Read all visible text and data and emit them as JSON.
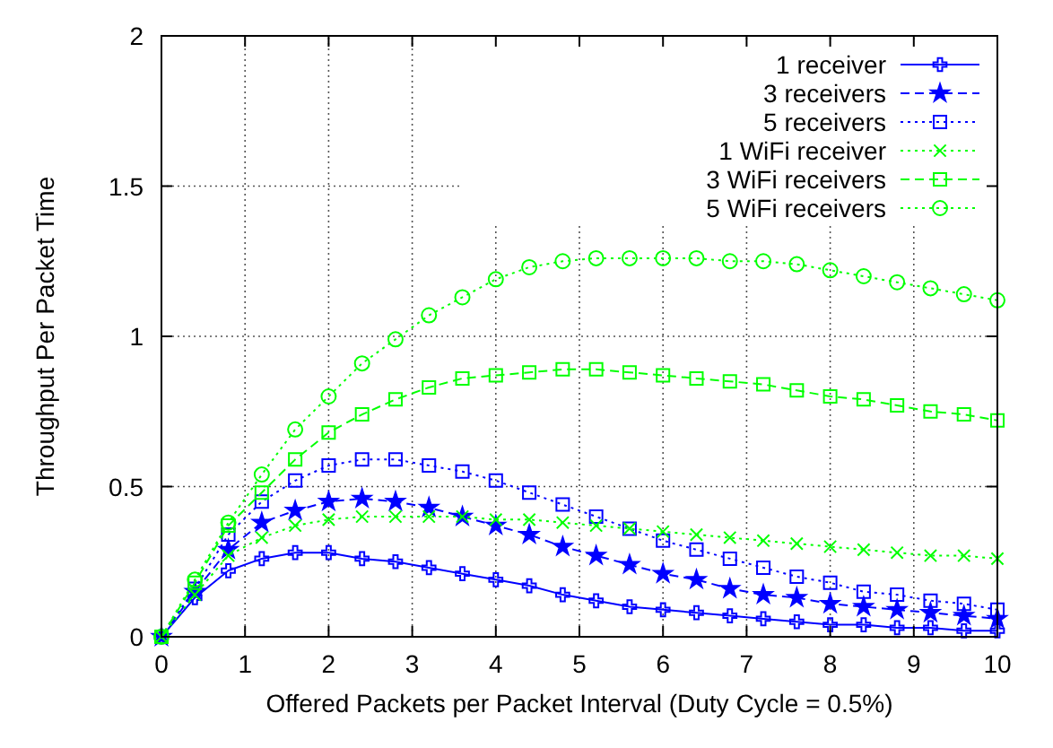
{
  "chart_data": {
    "type": "line",
    "xlabel": "Offered Packets per Packet Interval (Duty Cycle = 0.5%)",
    "ylabel": "Throughput Per Packet Time",
    "x": [
      0,
      0.4,
      0.8,
      1.2,
      1.6,
      2.0,
      2.4,
      2.8,
      3.2,
      3.6,
      4.0,
      4.4,
      4.8,
      5.2,
      5.6,
      6.0,
      6.4,
      6.8,
      7.2,
      7.6,
      8.0,
      8.4,
      8.8,
      9.2,
      9.6,
      10
    ],
    "series": [
      {
        "name": "1 receiver",
        "color": "#0000ff",
        "marker": "plus",
        "line_style": "solid",
        "values": [
          0,
          0.13,
          0.22,
          0.26,
          0.28,
          0.28,
          0.26,
          0.25,
          0.23,
          0.21,
          0.19,
          0.17,
          0.14,
          0.12,
          0.1,
          0.09,
          0.08,
          0.07,
          0.06,
          0.05,
          0.04,
          0.04,
          0.03,
          0.03,
          0.02,
          0.02
        ]
      },
      {
        "name": "3 receivers",
        "color": "#0000ff",
        "marker": "star",
        "line_style": "dashed",
        "values": [
          0,
          0.15,
          0.29,
          0.38,
          0.42,
          0.45,
          0.46,
          0.45,
          0.43,
          0.4,
          0.37,
          0.34,
          0.3,
          0.27,
          0.24,
          0.21,
          0.19,
          0.16,
          0.14,
          0.13,
          0.11,
          0.1,
          0.09,
          0.08,
          0.07,
          0.06
        ]
      },
      {
        "name": "5 receivers",
        "color": "#0000ff",
        "marker": "square",
        "line_style": "dotted",
        "values": [
          0,
          0.16,
          0.34,
          0.45,
          0.52,
          0.57,
          0.59,
          0.59,
          0.57,
          0.55,
          0.52,
          0.48,
          0.44,
          0.4,
          0.36,
          0.32,
          0.29,
          0.26,
          0.23,
          0.2,
          0.18,
          0.15,
          0.14,
          0.12,
          0.11,
          0.09
        ]
      },
      {
        "name": "1 WiFi receiver",
        "color": "#00ff00",
        "marker": "cross",
        "line_style": "dotted",
        "values": [
          0,
          0.14,
          0.27,
          0.33,
          0.37,
          0.39,
          0.4,
          0.4,
          0.4,
          0.4,
          0.39,
          0.39,
          0.38,
          0.37,
          0.36,
          0.35,
          0.34,
          0.33,
          0.32,
          0.31,
          0.3,
          0.29,
          0.28,
          0.27,
          0.27,
          0.26
        ]
      },
      {
        "name": "3 WiFi receivers",
        "color": "#00ff00",
        "marker": "square",
        "line_style": "dashed",
        "values": [
          0,
          0.18,
          0.37,
          0.48,
          0.59,
          0.68,
          0.74,
          0.79,
          0.83,
          0.86,
          0.87,
          0.88,
          0.89,
          0.89,
          0.88,
          0.87,
          0.86,
          0.85,
          0.84,
          0.82,
          0.8,
          0.79,
          0.77,
          0.75,
          0.74,
          0.72
        ]
      },
      {
        "name": "5 WiFi receivers",
        "color": "#00ff00",
        "marker": "circle",
        "line_style": "dotted",
        "values": [
          0,
          0.19,
          0.38,
          0.54,
          0.69,
          0.8,
          0.91,
          0.99,
          1.07,
          1.13,
          1.19,
          1.23,
          1.25,
          1.26,
          1.26,
          1.26,
          1.26,
          1.25,
          1.25,
          1.24,
          1.22,
          1.2,
          1.18,
          1.16,
          1.14,
          1.12
        ]
      }
    ],
    "xlim": [
      0,
      10
    ],
    "xticks": [
      0,
      1,
      2,
      3,
      4,
      5,
      6,
      7,
      8,
      9,
      10
    ],
    "ylim": [
      0,
      2
    ],
    "yticks": [
      0,
      0.5,
      1,
      1.5,
      2
    ],
    "grid": true,
    "legend": "top right"
  }
}
